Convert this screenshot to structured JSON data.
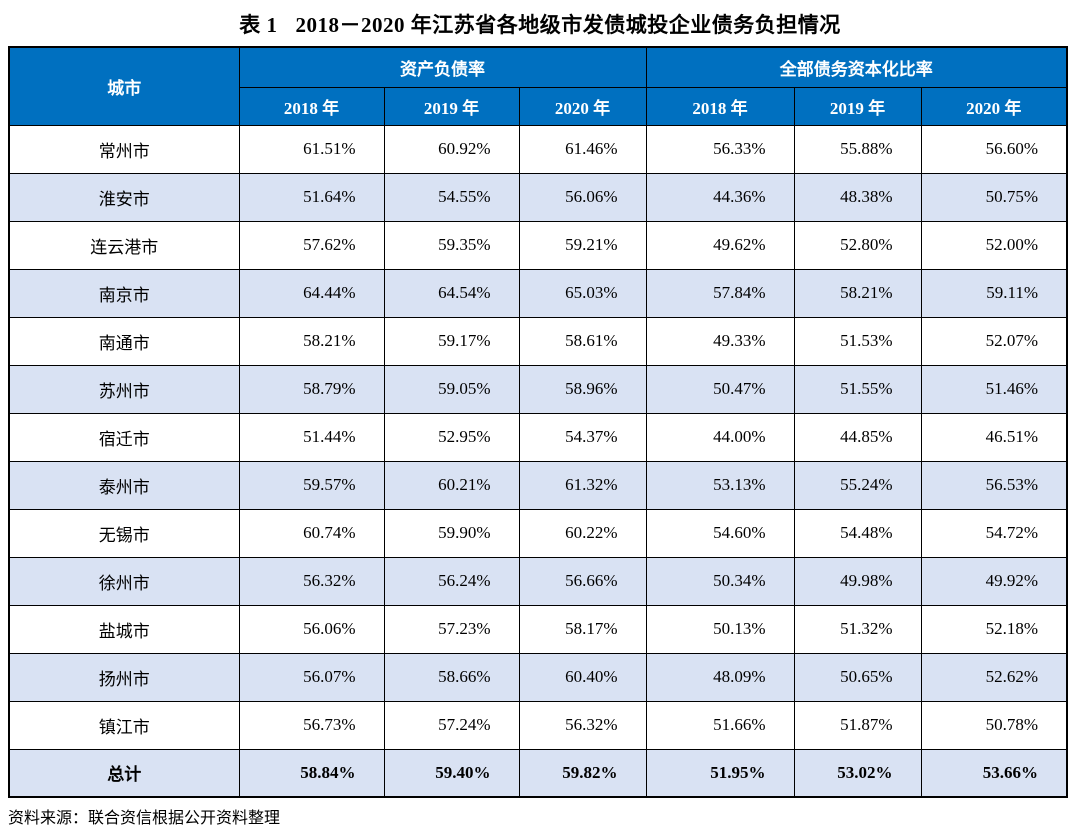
{
  "title": {
    "prefix": "表 1",
    "text": "2018－2020 年江苏省各地级市发债城投企业债务负担情况"
  },
  "colors": {
    "header_bg": "#0070C0",
    "stripe_bg": "#D9E2F3",
    "border": "#000000",
    "header_text": "#FFFFFF"
  },
  "table": {
    "header": {
      "city": "城市",
      "group_asset_liability": "资产负债率",
      "group_debt_capitalization": "全部债务资本化比率",
      "years": [
        "2018 年",
        "2019 年",
        "2020 年"
      ]
    },
    "rows": [
      {
        "city": "常州市",
        "values": [
          "61.51%",
          "60.92%",
          "61.46%",
          "56.33%",
          "55.88%",
          "56.60%"
        ]
      },
      {
        "city": "淮安市",
        "values": [
          "51.64%",
          "54.55%",
          "56.06%",
          "44.36%",
          "48.38%",
          "50.75%"
        ]
      },
      {
        "city": "连云港市",
        "values": [
          "57.62%",
          "59.35%",
          "59.21%",
          "49.62%",
          "52.80%",
          "52.00%"
        ]
      },
      {
        "city": "南京市",
        "values": [
          "64.44%",
          "64.54%",
          "65.03%",
          "57.84%",
          "58.21%",
          "59.11%"
        ]
      },
      {
        "city": "南通市",
        "values": [
          "58.21%",
          "59.17%",
          "58.61%",
          "49.33%",
          "51.53%",
          "52.07%"
        ]
      },
      {
        "city": "苏州市",
        "values": [
          "58.79%",
          "59.05%",
          "58.96%",
          "50.47%",
          "51.55%",
          "51.46%"
        ]
      },
      {
        "city": "宿迁市",
        "values": [
          "51.44%",
          "52.95%",
          "54.37%",
          "44.00%",
          "44.85%",
          "46.51%"
        ]
      },
      {
        "city": "泰州市",
        "values": [
          "59.57%",
          "60.21%",
          "61.32%",
          "53.13%",
          "55.24%",
          "56.53%"
        ]
      },
      {
        "city": "无锡市",
        "values": [
          "60.74%",
          "59.90%",
          "60.22%",
          "54.60%",
          "54.48%",
          "54.72%"
        ]
      },
      {
        "city": "徐州市",
        "values": [
          "56.32%",
          "56.24%",
          "56.66%",
          "50.34%",
          "49.98%",
          "49.92%"
        ]
      },
      {
        "city": "盐城市",
        "values": [
          "56.06%",
          "57.23%",
          "58.17%",
          "50.13%",
          "51.32%",
          "52.18%"
        ]
      },
      {
        "city": "扬州市",
        "values": [
          "56.07%",
          "58.66%",
          "60.40%",
          "48.09%",
          "50.65%",
          "52.62%"
        ]
      },
      {
        "city": "镇江市",
        "values": [
          "56.73%",
          "57.24%",
          "56.32%",
          "51.66%",
          "51.87%",
          "50.78%"
        ]
      }
    ],
    "total_row": {
      "city": "总计",
      "values": [
        "58.84%",
        "59.40%",
        "59.82%",
        "51.95%",
        "53.02%",
        "53.66%"
      ]
    }
  },
  "footer": {
    "source": "资料来源：联合资信根据公开资料整理"
  }
}
